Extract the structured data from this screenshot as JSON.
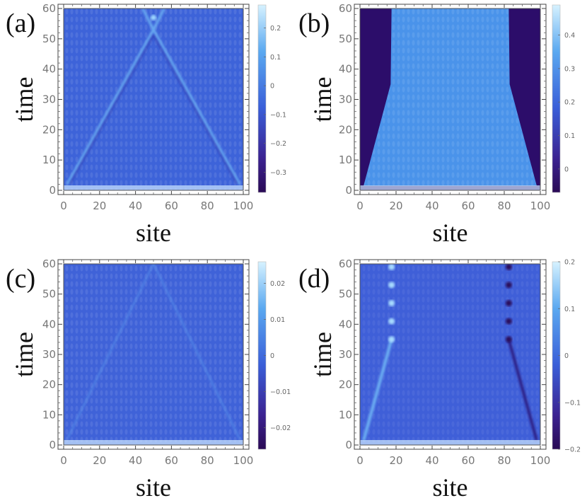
{
  "chart_data": [
    {
      "type": "heatmap",
      "panel_label": "(a)",
      "xlabel": "site",
      "ylabel": "time",
      "xlim": [
        0,
        100
      ],
      "ylim": [
        0,
        60
      ],
      "x_ticks": [
        "0",
        "20",
        "40",
        "60",
        "80",
        "100"
      ],
      "y_ticks": [
        "0",
        "10",
        "20",
        "30",
        "40",
        "50",
        "60"
      ],
      "colorbar_range": [
        -0.37,
        0.28
      ],
      "colorbar_ticks": [
        "0.2",
        "0.1",
        "0",
        "−0.1",
        "−0.2",
        "−0.3"
      ],
      "colorbar_values": [
        0.2,
        0.1,
        0,
        -0.1,
        -0.2,
        -0.3
      ],
      "pattern": "light cone from both edges meeting at center",
      "colors": {
        "low": "#2a0a55",
        "mid": "#3a5ed8",
        "high": "#cfeeff"
      }
    },
    {
      "type": "heatmap",
      "panel_label": "(b)",
      "xlabel": "site",
      "ylabel": "time",
      "xlim": [
        0,
        100
      ],
      "ylim": [
        0,
        60
      ],
      "x_ticks": [
        "0",
        "20",
        "40",
        "60",
        "80",
        "100"
      ],
      "y_ticks": [
        "0",
        "10",
        "20",
        "30",
        "40",
        "50",
        "60"
      ],
      "colorbar_range": [
        -0.07,
        0.49
      ],
      "colorbar_ticks": [
        "0.4",
        "0.3",
        "0.2",
        "0.1",
        "0"
      ],
      "colorbar_values": [
        0.4,
        0.3,
        0.2,
        0.1,
        0
      ],
      "pattern": "filled region inside light cone, saturating near sites 17 and 83",
      "colors": {
        "low": "#2a0a55",
        "mid": "#3a5ed8",
        "high": "#cfeeff"
      }
    },
    {
      "type": "heatmap",
      "panel_label": "(c)",
      "xlabel": "site",
      "ylabel": "time",
      "xlim": [
        0,
        100
      ],
      "ylim": [
        0,
        60
      ],
      "x_ticks": [
        "0",
        "20",
        "40",
        "60",
        "80",
        "100"
      ],
      "y_ticks": [
        "0",
        "10",
        "20",
        "30",
        "40",
        "50",
        "60"
      ],
      "colorbar_range": [
        -0.026,
        0.026
      ],
      "colorbar_ticks": [
        "0.02",
        "0.01",
        "0",
        "−0.01",
        "−0.02"
      ],
      "colorbar_values": [
        0.02,
        0.01,
        0,
        -0.01,
        -0.02
      ],
      "pattern": "faint light cone from both edges",
      "colors": {
        "low": "#2a0a55",
        "mid": "#3a5ed8",
        "high": "#cfeeff"
      }
    },
    {
      "type": "heatmap",
      "panel_label": "(d)",
      "xlabel": "site",
      "ylabel": "time",
      "xlim": [
        0,
        100
      ],
      "ylim": [
        0,
        60
      ],
      "x_ticks": [
        "0",
        "20",
        "40",
        "60",
        "80",
        "100"
      ],
      "y_ticks": [
        "0",
        "10",
        "20",
        "30",
        "40",
        "50",
        "60"
      ],
      "colorbar_range": [
        -0.2,
        0.2
      ],
      "colorbar_ticks": [
        "0.2",
        "0.1",
        "0",
        "−0.1",
        "−0.2"
      ],
      "colorbar_values": [
        0.2,
        0.1,
        0,
        -0.1,
        -0.2
      ],
      "pattern": "bright front from left edge, dark front from right edge, oscillating near sites 17 and 83",
      "colors": {
        "low": "#2a0a55",
        "mid": "#3a5ed8",
        "high": "#cfeeff"
      }
    }
  ]
}
